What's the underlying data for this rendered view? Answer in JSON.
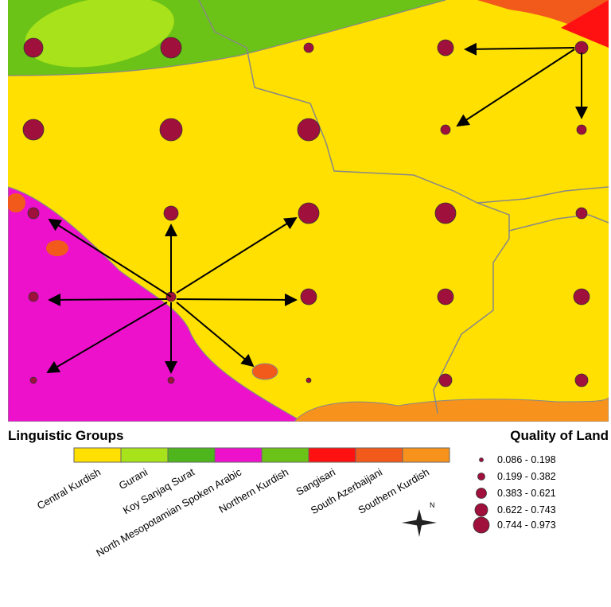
{
  "legend": {
    "title": "Linguistic Groups",
    "items": [
      {
        "name": "Central Kurdish",
        "color": "#ffe000"
      },
      {
        "name": "Gurani",
        "color": "#a8e21a"
      },
      {
        "name": "Koy Sanjaq Surat",
        "color": "#4fb51c"
      },
      {
        "name": "North Mesopotamian Spoken Arabic",
        "color": "#ee11cc"
      },
      {
        "name": "Northern Kurdish",
        "color": "#6cc317"
      },
      {
        "name": "Sangisari",
        "color": "#ff1111"
      },
      {
        "name": "South Azerbaijani",
        "color": "#f25a1c"
      },
      {
        "name": "Southern Kurdish",
        "color": "#f7931c"
      }
    ]
  },
  "quality": {
    "title": "Quality of Land",
    "classes": [
      "0.086 - 0.198",
      "0.199 - 0.382",
      "0.383 - 0.621",
      "0.622 - 0.743",
      "0.744 - 0.973"
    ]
  },
  "compass": {
    "label": "N"
  }
}
